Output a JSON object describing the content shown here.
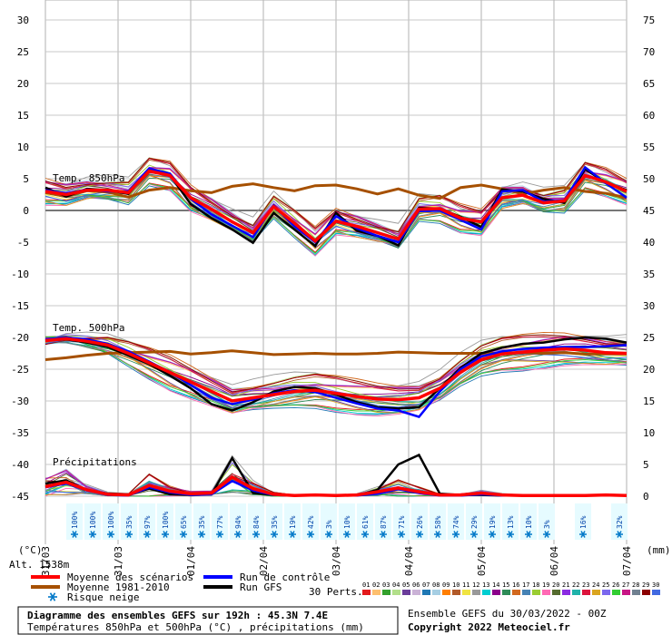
{
  "chart_data": {
    "type": "line",
    "left_axis": {
      "unit": "(°C)",
      "ticks": [
        30,
        25,
        20,
        15,
        10,
        5,
        0,
        -5,
        -10,
        -15,
        -20,
        -25,
        -30,
        -35,
        -40,
        -45
      ],
      "range": [
        -45,
        30
      ]
    },
    "right_axis": {
      "unit": "(mm)",
      "ticks": [
        75,
        70,
        65,
        60,
        55,
        50,
        45,
        40,
        35,
        30,
        25,
        20,
        15,
        10,
        5,
        0
      ],
      "range": [
        0,
        75
      ]
    },
    "x_ticks": [
      "31/03",
      "31/03",
      "01/04",
      "02/04",
      "03/04",
      "04/04",
      "05/04",
      "06/04",
      "07/04"
    ],
    "altitude_label": "Alt. 1538m",
    "section_labels": {
      "t850": "Temp. 850hPa",
      "t500": "Temp. 500hPa",
      "precip": "Précipitations"
    },
    "snow_risk": [
      "100%",
      "100%",
      "100%",
      "35%",
      "97%",
      "100%",
      "65%",
      "35%",
      "77%",
      "94%",
      "84%",
      "35%",
      "19%",
      "42%",
      "3%",
      "10%",
      "61%",
      "87%",
      "71%",
      "26%",
      "58%",
      "74%",
      "29%",
      "19%",
      "13%",
      "10%",
      "3%",
      "16%",
      "32%"
    ],
    "snow_slots": [
      1,
      2,
      3,
      4,
      5,
      6,
      7,
      8,
      9,
      10,
      11,
      12,
      13,
      14,
      15,
      16,
      17,
      18,
      19,
      20,
      21,
      22,
      23,
      24,
      25,
      26,
      27,
      29,
      31
    ],
    "series": [
      {
        "name": "Moyenne des scénarios",
        "color": "#ff0000",
        "t850": [
          3,
          2.5,
          3.2,
          3.2,
          2.8,
          6.2,
          5.5,
          2,
          0.2,
          -1.8,
          -3.5,
          0.6,
          -2,
          -4.8,
          -1.7,
          -2.5,
          -3.5,
          -4.5,
          0.2,
          0.3,
          -1.2,
          -1.8,
          2,
          2.4,
          1.2,
          1.5,
          5.5,
          4.5,
          3
        ],
        "t500": [
          -20.5,
          -20.2,
          -20.6,
          -21.2,
          -22.5,
          -24,
          -25.5,
          -27,
          -28.5,
          -30,
          -29.5,
          -29,
          -28.5,
          -28.3,
          -28.8,
          -29.3,
          -29.7,
          -29.8,
          -29.5,
          -28,
          -25.5,
          -23.5,
          -22.6,
          -22.3,
          -22,
          -21.8,
          -22,
          -22.4,
          -22.5
        ],
        "precip": [
          1.5,
          2.2,
          1,
          0.3,
          0.2,
          1.7,
          0.8,
          0.4,
          0.5,
          3,
          1.2,
          0.3,
          0.1,
          0.2,
          0.1,
          0.2,
          0.7,
          1.3,
          0.7,
          0.2,
          0.2,
          0.5,
          0.2,
          0.1,
          0.1,
          0.1,
          0.1,
          0.2,
          0.1
        ]
      },
      {
        "name": "Run de contrôle",
        "color": "#0000ff",
        "t850": [
          3.2,
          2.7,
          3.3,
          3,
          3,
          6.6,
          5.8,
          1.8,
          -0.6,
          -2.4,
          -4.2,
          0.8,
          -2.5,
          -5,
          -0.9,
          -2.8,
          -4,
          -5,
          -0.1,
          0,
          -1.5,
          -3,
          3,
          3.2,
          1.4,
          1.6,
          6.8,
          4.3,
          2
        ],
        "t500": [
          -20.3,
          -20,
          -20.3,
          -21,
          -22.2,
          -23.8,
          -25.5,
          -27.5,
          -29.5,
          -30.5,
          -29.8,
          -28.8,
          -28.3,
          -28.6,
          -29.5,
          -30.4,
          -31.2,
          -31.5,
          -32.5,
          -28.5,
          -25,
          -23,
          -22.2,
          -21.8,
          -21.6,
          -21.5,
          -21.5,
          -21.4,
          -21.2
        ],
        "precip": [
          1.4,
          2,
          0.9,
          0.2,
          0.1,
          1.4,
          0.6,
          0.2,
          0.3,
          2.4,
          0.9,
          0.2,
          0.1,
          0.1,
          0.1,
          0.1,
          0.4,
          1.1,
          0.5,
          0.1,
          0.1,
          0.3,
          0.1,
          0.1,
          0.1,
          0.1,
          0.1,
          0.1,
          0.1
        ]
      },
      {
        "name": "Run GFS",
        "color": "#000000",
        "t850": [
          3.6,
          2.2,
          3.4,
          3.2,
          2.6,
          6.4,
          5.6,
          1,
          -1.2,
          -3,
          -5.1,
          -0.4,
          -3,
          -5.6,
          -0.4,
          -3.2,
          -4,
          -5.5,
          0.4,
          0.3,
          -1,
          -2.6,
          3.3,
          3,
          1.8,
          1.2,
          6.5,
          4.4,
          3.2
        ],
        "t500": [
          -20.5,
          -20.3,
          -20.8,
          -21.5,
          -22.8,
          -24.2,
          -26,
          -28,
          -30.5,
          -31.5,
          -30.2,
          -28.5,
          -27.8,
          -28,
          -29,
          -30.2,
          -31,
          -31.2,
          -31,
          -28,
          -24.8,
          -22.5,
          -21.6,
          -21,
          -20.8,
          -20.3,
          -20,
          -20.2,
          -20.8
        ],
        "precip": [
          2,
          2.5,
          1,
          0.4,
          0.3,
          1.2,
          0.3,
          0.2,
          0.3,
          6,
          0.5,
          0.2,
          0.1,
          0.1,
          0.1,
          0.1,
          1,
          5,
          6.5,
          0.4,
          0.2,
          0.2,
          0.1,
          0.1,
          0.1,
          0.1,
          0.1,
          0.1,
          0.1
        ]
      },
      {
        "name": "Moyenne 1981-2010",
        "color": "#a65000",
        "t850": [
          2.8,
          2.2,
          3.1,
          2.9,
          2.1,
          3.2,
          3.6,
          3.1,
          2.8,
          3.8,
          4.2,
          3.6,
          3.1,
          3.9,
          4,
          3.4,
          2.6,
          3.4,
          2.4,
          1.9,
          3.6,
          4,
          3.4,
          2.6,
          3.2,
          3.6,
          3,
          2.7,
          2
        ],
        "t500": [
          -23.5,
          -23.2,
          -22.8,
          -22.5,
          -22.4,
          -22.3,
          -22.2,
          -22.6,
          -22.4,
          -22.1,
          -22.4,
          -22.7,
          -22.6,
          -22.5,
          -22.6,
          -22.6,
          -22.5,
          -22.3,
          -22.4,
          -22.5,
          -22.5,
          -22.5,
          -22.5,
          -22.4,
          -22.5,
          -22.4,
          -22.6,
          -22.6,
          -22.6
        ]
      }
    ],
    "perturbations": {
      "label": "30 Perts.",
      "codes": [
        "01",
        "02",
        "03",
        "04",
        "05",
        "06",
        "07",
        "08",
        "09",
        "10",
        "11",
        "12",
        "13",
        "14",
        "15",
        "16",
        "17",
        "18",
        "19",
        "20",
        "21",
        "22",
        "23",
        "24",
        "25",
        "26",
        "27",
        "28",
        "29",
        "30"
      ],
      "colors": [
        "#e31a1c",
        "#fdbf6f",
        "#33a02c",
        "#b2df8a",
        "#6a3d9a",
        "#cab2d6",
        "#1f78b4",
        "#a6cee3",
        "#ff7f00",
        "#b15928",
        "#f0e442",
        "#999999",
        "#00ced1",
        "#8b008b",
        "#2e8b57",
        "#d2691e",
        "#4682b4",
        "#9acd32",
        "#ff69b4",
        "#556b2f",
        "#8a2be2",
        "#20b2aa",
        "#dc143c",
        "#daa520",
        "#7b68ee",
        "#32cd32",
        "#c71585",
        "#708090",
        "#8b0000",
        "#4169e1"
      ]
    },
    "legend": [
      {
        "label": "Moyenne des scénarios",
        "color": "#ff0000"
      },
      {
        "label": "Run de contrôle",
        "color": "#0000ff"
      },
      {
        "label": "Moyenne 1981-2010",
        "color": "#a65000"
      },
      {
        "label": "Run GFS",
        "color": "#000000"
      },
      {
        "label": "Risque neige",
        "color": "#0078c8"
      }
    ],
    "info_box": {
      "title": "Diagramme des ensembles GEFS sur 192h : 45.3N 7.4E",
      "subtitle": "Températures 850hPa et 500hPa (°C) , précipitations (mm)"
    },
    "run_label": "Ensemble GEFS du 30/03/2022 - 00Z",
    "copyright": "Copyright 2022 Meteociel.fr"
  }
}
